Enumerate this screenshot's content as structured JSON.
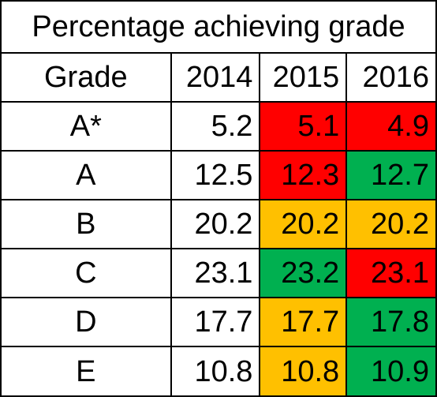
{
  "table": {
    "title": "Percentage achieving grade",
    "header": [
      "Grade",
      "2014",
      "2015",
      "2016"
    ],
    "rows": [
      {
        "grade": "A*",
        "v2014": "5.2",
        "v2015": "5.1",
        "v2016": "4.9"
      },
      {
        "grade": "A",
        "v2014": "12.5",
        "v2015": "12.3",
        "v2016": "12.7"
      },
      {
        "grade": "B",
        "v2014": "20.2",
        "v2015": "20.2",
        "v2016": "20.2"
      },
      {
        "grade": "C",
        "v2014": "23.1",
        "v2015": "23.2",
        "v2016": "23.1"
      },
      {
        "grade": "D",
        "v2014": "17.7",
        "v2015": "17.7",
        "v2016": "17.8"
      },
      {
        "grade": "E",
        "v2014": "10.8",
        "v2015": "10.8",
        "v2016": "10.9"
      }
    ]
  },
  "colors": {
    "red": "#ff0000",
    "green": "#00b050",
    "amber": "#ffc000",
    "none": "#ffffff"
  },
  "cell_colors": [
    {
      "c2015": "red",
      "c2016": "red"
    },
    {
      "c2015": "red",
      "c2016": "green"
    },
    {
      "c2015": "amber",
      "c2016": "amber"
    },
    {
      "c2015": "green",
      "c2016": "red"
    },
    {
      "c2015": "amber",
      "c2016": "green"
    },
    {
      "c2015": "amber",
      "c2016": "green"
    }
  ]
}
